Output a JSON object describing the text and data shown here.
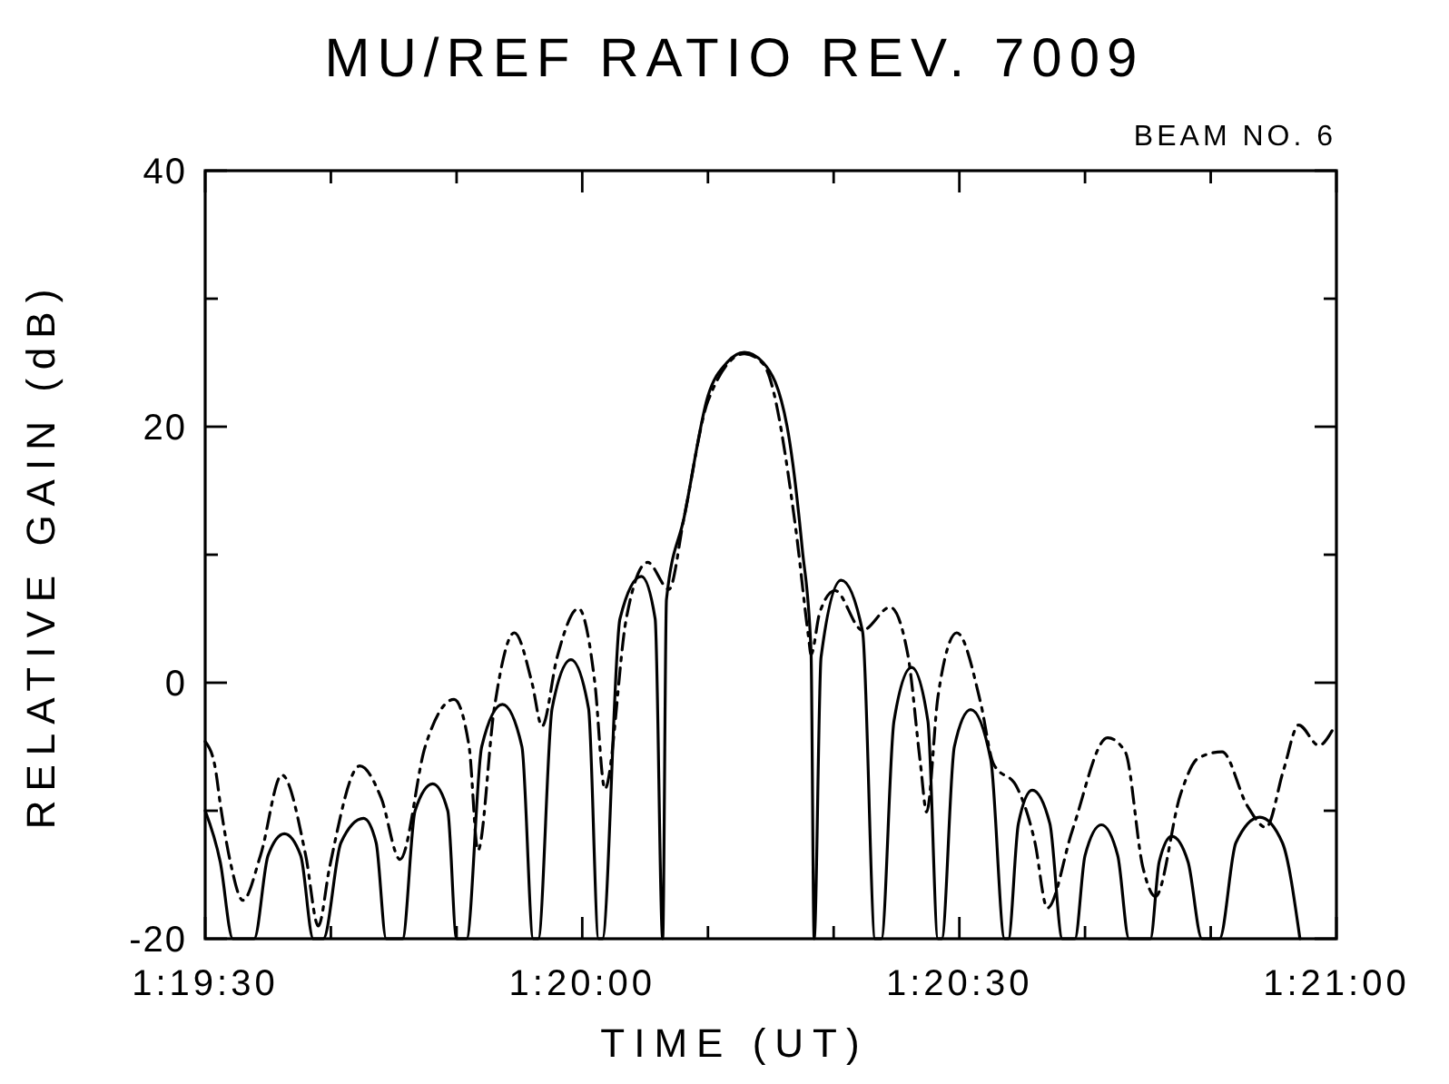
{
  "chart_data": {
    "type": "line",
    "title": "MU/REF RATIO  REV. 7009",
    "subtitle": "BEAM NO. 6",
    "xlabel": "TIME (UT)",
    "ylabel": "RELATIVE GAIN (dB)",
    "xlim": [
      1.325,
      1.35
    ],
    "xticks": [
      {
        "value": 1.325,
        "label": "1:19:30"
      },
      {
        "value": 1.327778,
        "label": null
      },
      {
        "value": 1.330556,
        "label": null
      },
      {
        "value": 1.333333,
        "label": "1:20:00"
      },
      {
        "value": 1.336111,
        "label": null
      },
      {
        "value": 1.338889,
        "label": null
      },
      {
        "value": 1.341667,
        "label": "1:20:30"
      },
      {
        "value": 1.344444,
        "label": null
      },
      {
        "value": 1.347222,
        "label": null
      },
      {
        "value": 1.35,
        "label": "1:21:00"
      }
    ],
    "ylim": [
      -20,
      40
    ],
    "yticks": [
      -20,
      {
        "value": -10,
        "label": null
      },
      0,
      {
        "value": 10,
        "label": null
      },
      20,
      {
        "value": 30,
        "label": null
      },
      40
    ],
    "grid": false,
    "series": [
      {
        "color": "#000000",
        "line_style": "solid",
        "x": [
          1.325,
          1.325333,
          1.325611,
          1.326083,
          1.326389,
          1.32675,
          1.327111,
          1.327389,
          1.327611,
          1.328,
          1.3285,
          1.328778,
          1.329,
          1.329361,
          1.329639,
          1.330028,
          1.330361,
          1.330556,
          1.330778,
          1.331111,
          1.331569,
          1.332,
          1.33225,
          1.332361,
          1.332667,
          1.333083,
          1.333472,
          1.333694,
          1.333778,
          1.334167,
          1.334639,
          1.334944,
          1.335111,
          1.335194,
          1.335583,
          1.336111,
          1.336528,
          1.336917,
          1.337333,
          1.337861,
          1.338194,
          1.338389,
          1.338458,
          1.338611,
          1.339056,
          1.339528,
          1.339806,
          1.339944,
          1.340222,
          1.340611,
          1.340972,
          1.341194,
          1.341278,
          1.341556,
          1.341917,
          1.342361,
          1.342667,
          1.34275,
          1.342972,
          1.343278,
          1.343667,
          1.343944,
          1.344222,
          1.344444,
          1.344806,
          1.345167,
          1.345417,
          1.345889,
          1.346083,
          1.346361,
          1.346722,
          1.347028,
          1.347417,
          1.347778,
          1.348306,
          1.348806,
          1.349194
        ],
        "values": [
          -10,
          -14,
          -20,
          -20,
          -13.5,
          -11.8,
          -13.5,
          -20,
          -20,
          -12.5,
          -10.6,
          -12.5,
          -20,
          -20,
          -10,
          -7.9,
          -10,
          -20,
          -20,
          -5,
          -1.7,
          -5,
          -20,
          -20,
          -2,
          1.8,
          -2,
          -20,
          -20,
          5,
          8.3,
          5,
          -20,
          6.5,
          12.9,
          22.4,
          25,
          25.8,
          25,
          20,
          10.5,
          2.5,
          -20,
          2,
          8,
          4,
          -20,
          -20,
          -3,
          1.2,
          -3,
          -20,
          -20,
          -5,
          -2.1,
          -6,
          -20,
          -20,
          -11,
          -8.4,
          -11,
          -20,
          -20,
          -13.5,
          -11.1,
          -13.5,
          -20,
          -20,
          -14,
          -12,
          -14,
          -20,
          -20,
          -12.5,
          -10.5,
          -12.5,
          -20
        ]
      },
      {
        "color": "#000000",
        "line_style": "dashed",
        "x": [
          1.325,
          1.325214,
          1.325347,
          1.325556,
          1.325833,
          1.326222,
          1.326694,
          1.327222,
          1.3275,
          1.32775,
          1.328417,
          1.328889,
          1.329306,
          1.329861,
          1.3305,
          1.330833,
          1.331028,
          1.331389,
          1.331833,
          1.332222,
          1.332444,
          1.332778,
          1.33325,
          1.333611,
          1.333833,
          1.334306,
          1.334778,
          1.33525,
          1.335583,
          1.336111,
          1.336917,
          1.337333,
          1.338056,
          1.338333,
          1.338389,
          1.338583,
          1.338917,
          1.339528,
          1.340139,
          1.340528,
          1.340806,
          1.340944,
          1.341194,
          1.341611,
          1.342139,
          1.342417,
          1.342944,
          1.343333,
          1.343611,
          1.344167,
          1.344944,
          1.345333,
          1.345722,
          1.346,
          1.346556,
          1.346944,
          1.347472,
          1.348028,
          1.348444,
          1.348833,
          1.349167,
          1.349611,
          1.349944
        ],
        "values": [
          -4.6,
          -6.5,
          -9.8,
          -14,
          -17,
          -13.5,
          -7.2,
          -13.5,
          -19,
          -14.4,
          -6.5,
          -9,
          -13.8,
          -5,
          -1.3,
          -5,
          -13.1,
          -2,
          3.9,
          0,
          -3.4,
          2,
          5.8,
          0,
          -8.3,
          5,
          9.4,
          7.3,
          12.9,
          22,
          25.7,
          24.9,
          11.9,
          3.6,
          2.2,
          5.5,
          7.2,
          4.1,
          5.9,
          2.2,
          -6.3,
          -10.1,
          -1.1,
          3.9,
          -1.6,
          -6.3,
          -8.2,
          -12.4,
          -17.6,
          -11.5,
          -4.3,
          -5.4,
          -14.4,
          -16.7,
          -8.7,
          -5.9,
          -5.4,
          -9.6,
          -11.3,
          -6.8,
          -3.3,
          -4.9,
          -3.5
        ]
      }
    ]
  }
}
